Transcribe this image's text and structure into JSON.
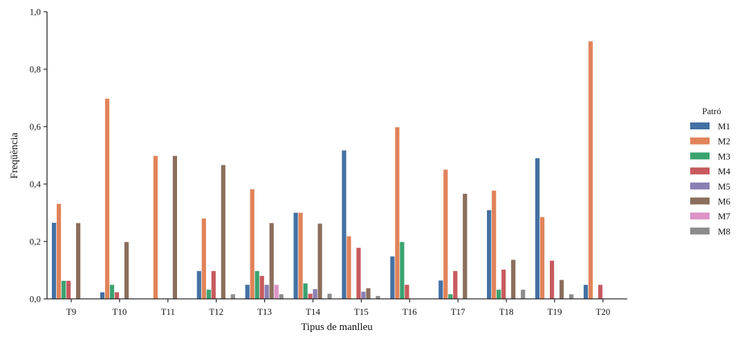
{
  "chart_data": {
    "type": "bar",
    "xlabel": "Tipus de manlleu",
    "ylabel": "Freqüència",
    "ylim": [
      0,
      1.0
    ],
    "yticks": [
      "0,0",
      "0,2",
      "0,4",
      "0,6",
      "0,8",
      "1,0"
    ],
    "ytick_values": [
      0,
      0.2,
      0.4,
      0.6,
      0.8,
      1.0
    ],
    "grid": false,
    "legend_title": "Patró",
    "legend_position": "right",
    "categories": [
      "T9",
      "T10",
      "T11",
      "T12",
      "T13",
      "T14",
      "T15",
      "T16",
      "T17",
      "T18",
      "T19",
      "T20"
    ],
    "series": [
      {
        "name": "M1",
        "color": "#4471a4",
        "values": [
          0.265,
          0.023,
          0,
          0.097,
          0.049,
          0.3,
          0.517,
          0.148,
          0.064,
          0.309,
          0.49,
          0.049
        ]
      },
      {
        "name": "M2",
        "color": "#e1835a",
        "values": [
          0.331,
          0.697,
          0.498,
          0.28,
          0.382,
          0.3,
          0.218,
          0.598,
          0.45,
          0.377,
          0.285,
          0.897
        ]
      },
      {
        "name": "M3",
        "color": "#3aa36f",
        "values": [
          0.063,
          0.049,
          0,
          0.032,
          0.097,
          0.054,
          0,
          0.198,
          0.016,
          0.032,
          0,
          0
        ]
      },
      {
        "name": "M4",
        "color": "#c85a5e",
        "values": [
          0.063,
          0.023,
          0,
          0.097,
          0.08,
          0.018,
          0.178,
          0.049,
          0.097,
          0.102,
          0.133,
          0.049
        ]
      },
      {
        "name": "M5",
        "color": "#8a7fb3",
        "values": [
          0,
          0,
          0,
          0,
          0.049,
          0.034,
          0.025,
          0,
          0,
          0,
          0,
          0
        ]
      },
      {
        "name": "M6",
        "color": "#8b6e5c",
        "values": [
          0.264,
          0.198,
          0.498,
          0.466,
          0.264,
          0.262,
          0.037,
          0,
          0.366,
          0.136,
          0.066,
          0
        ]
      },
      {
        "name": "M7",
        "color": "#de94c6",
        "values": [
          0,
          0,
          0,
          0,
          0.049,
          0,
          0,
          0,
          0,
          0,
          0,
          0
        ]
      },
      {
        "name": "M8",
        "color": "#8c8c8c",
        "values": [
          0,
          0,
          0,
          0.016,
          0.016,
          0.018,
          0.01,
          0,
          0,
          0.032,
          0.016,
          0
        ]
      }
    ]
  }
}
